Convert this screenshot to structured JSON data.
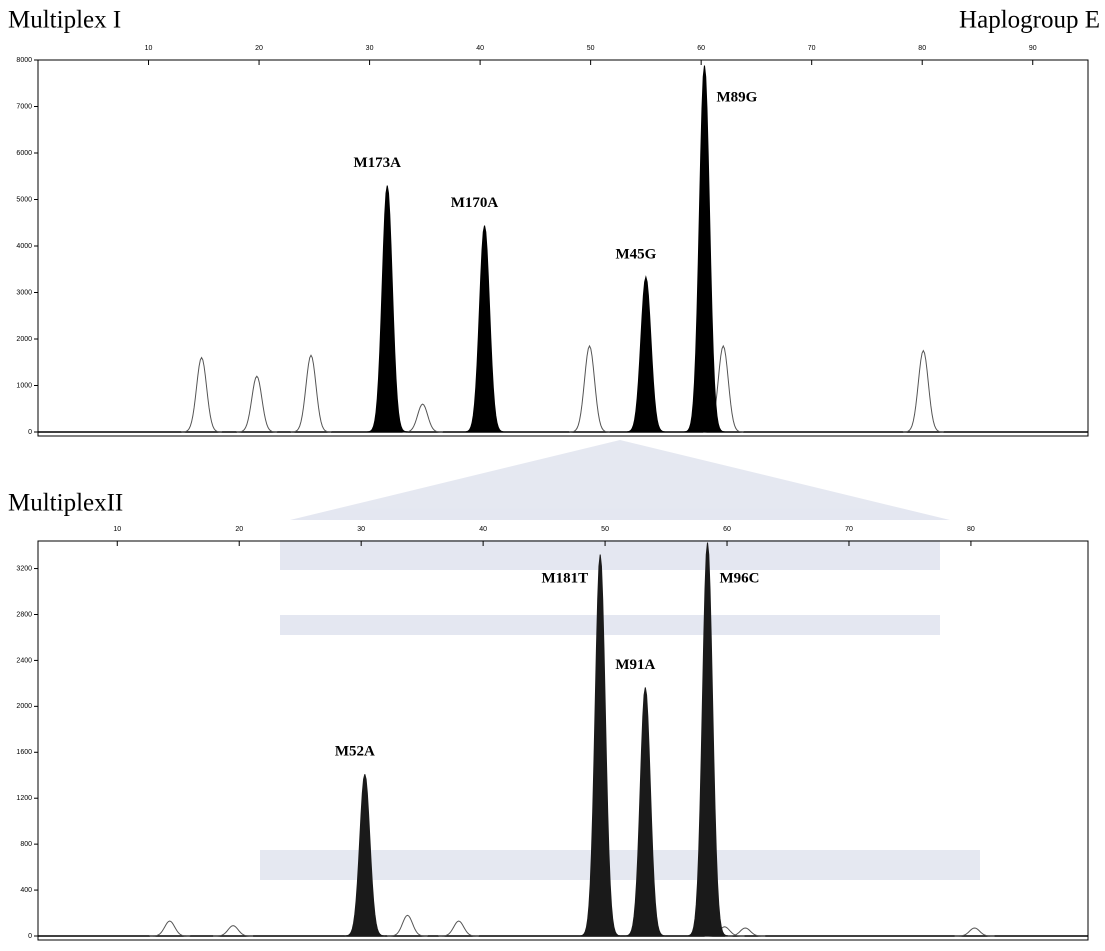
{
  "chart_data": [
    {
      "type": "peaks",
      "title": "Multiplex I",
      "annotation": "Haplogroup E",
      "xlim": [
        0,
        95
      ],
      "xticks": [
        10,
        20,
        30,
        40,
        50,
        60,
        70,
        80,
        90
      ],
      "ylim": [
        0,
        8000
      ],
      "yticks": [
        0,
        1000,
        2000,
        3000,
        4000,
        5000,
        6000,
        7000,
        8000
      ],
      "peaks": {
        "x": [
          31.6,
          40.4,
          55.0,
          60.3
        ],
        "values": [
          5300,
          4440,
          3330,
          7880
        ],
        "labels": [
          "M173A",
          "M170A",
          "M45G",
          "M89G"
        ],
        "color": "#000000"
      },
      "minor_peaks": {
        "x": [
          14.8,
          19.8,
          24.7,
          34.8,
          49.9,
          62.0,
          80.1
        ],
        "values": [
          1600,
          1200,
          1650,
          600,
          1850,
          1850,
          1750
        ],
        "color": "#555555"
      }
    },
    {
      "type": "peaks",
      "title": "MultiplexII",
      "xlim": [
        3.5,
        89.6
      ],
      "xticks": [
        10,
        20,
        30,
        40,
        50,
        60,
        70,
        80
      ],
      "ylim": [
        0,
        3440
      ],
      "yticks": [
        0,
        400,
        800,
        1200,
        1600,
        2000,
        2400,
        2800,
        3200
      ],
      "peaks": {
        "x": [
          30.3,
          49.6,
          53.3,
          58.4
        ],
        "values": [
          1409,
          3322,
          2165,
          3426
        ],
        "labels": [
          "M52A",
          "M181T",
          "M91A",
          "M96C"
        ],
        "color": "#1a1a1a"
      },
      "minor_peaks": {
        "x": [
          14.3,
          19.5,
          33.8,
          38.0,
          59.8,
          61.5,
          80.3
        ],
        "values": [
          130,
          90,
          180,
          130,
          80,
          70,
          70
        ],
        "color": "#555555"
      }
    }
  ]
}
